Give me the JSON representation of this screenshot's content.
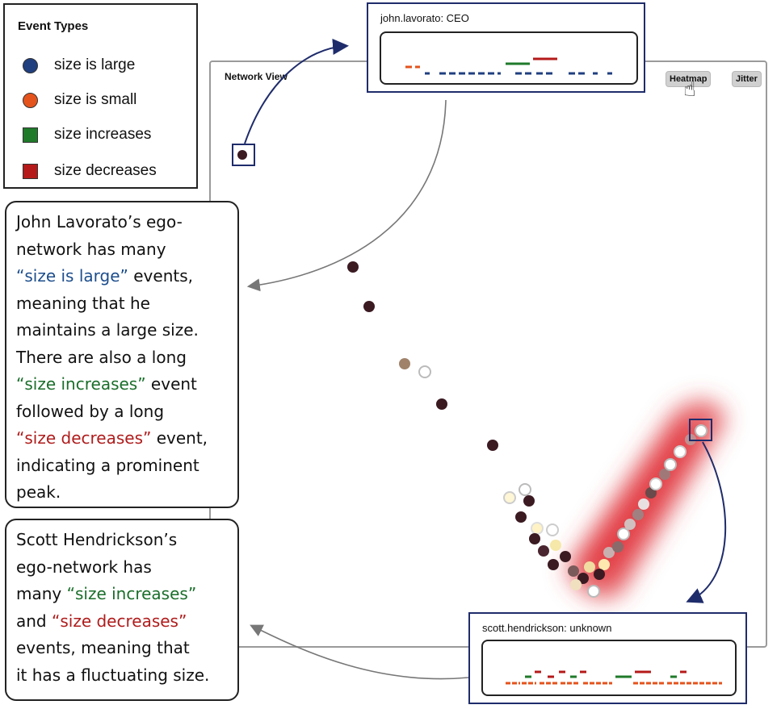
{
  "legend": {
    "title": "Event Types",
    "items": [
      {
        "label": "size is large",
        "color": "#1f3f7f",
        "shape": "circle"
      },
      {
        "label": "size is small",
        "color": "#e4531c",
        "shape": "circle"
      },
      {
        "label": "size increases",
        "color": "#1f7a2a",
        "shape": "square"
      },
      {
        "label": "size decreases",
        "color": "#b51919",
        "shape": "square"
      }
    ]
  },
  "network_view": {
    "title": "Network View",
    "buttons": {
      "heatmap": "Heatmap",
      "jitter": "Jitter"
    }
  },
  "ego_top": {
    "title": "john.lavorato: CEO"
  },
  "ego_bottom": {
    "title": "scott.hendrickson: unknown"
  },
  "note_top": {
    "l1": "John Lavorato’s ego-",
    "l2": "network has many",
    "l3a": "“size is large”",
    "l3b": " events,",
    "l4": "meaning that he",
    "l5": "maintains a large size.",
    "l6": "There are also a long",
    "l7a": "“size increases”",
    "l7b": " event",
    "l8": "followed by a long",
    "l9a": "“size decreases”",
    "l9b": " event,",
    "l10": "indicating a prominent",
    "l11": "peak."
  },
  "note_bottom": {
    "l1": "Scott Hendrickson’s",
    "l2": "ego-network has",
    "l3a": "many ",
    "l3b": "“size increases”",
    "l4a": "and ",
    "l4b": "“size decreases”",
    "l5": "events, meaning that",
    "l6": "it has a fluctuating size."
  }
}
